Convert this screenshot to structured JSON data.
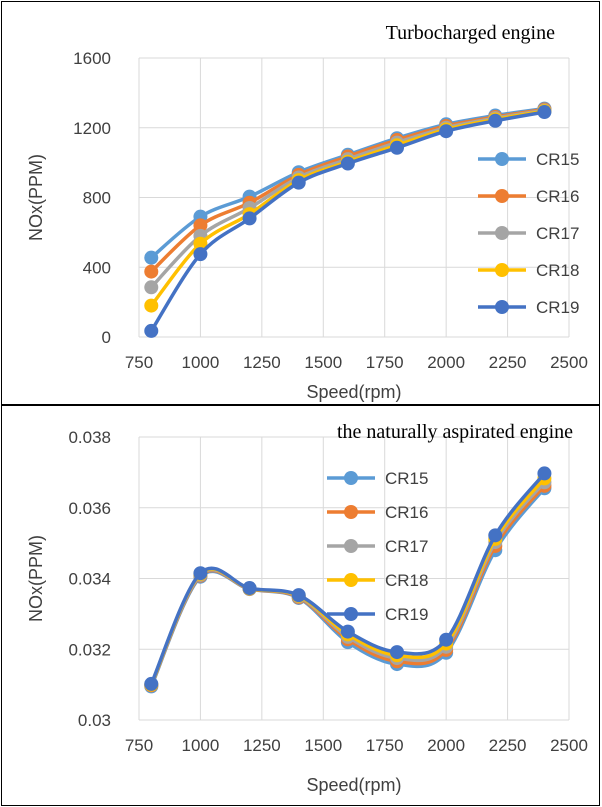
{
  "colors": [
    "#5B9BD5",
    "#ED7D31",
    "#A5A5A5",
    "#FFC000",
    "#4472C4"
  ],
  "chart_data": [
    {
      "type": "line",
      "title": "Turbocharged engine",
      "xlabel": "Speed(rpm)",
      "ylabel": "NOx(PPM)",
      "x": [
        800,
        1000,
        1200,
        1400,
        1600,
        1800,
        2000,
        2200,
        2400
      ],
      "xlim": [
        750,
        2500
      ],
      "ylim": [
        0,
        1600
      ],
      "xticks": [
        750,
        1000,
        1250,
        1500,
        1750,
        2000,
        2250,
        2500
      ],
      "yticks": [
        0,
        400,
        800,
        1200,
        1600
      ],
      "ytick_labels": [
        "0",
        "400",
        "800",
        "1200",
        "1600"
      ],
      "legend": "right",
      "grid": true,
      "series": [
        {
          "name": "CR15",
          "values": [
            455,
            690,
            805,
            945,
            1045,
            1140,
            1220,
            1270,
            1310
          ]
        },
        {
          "name": "CR16",
          "values": [
            375,
            640,
            770,
            930,
            1035,
            1130,
            1210,
            1262,
            1305
          ]
        },
        {
          "name": "CR17",
          "values": [
            285,
            580,
            740,
            915,
            1020,
            1115,
            1200,
            1255,
            1300
          ]
        },
        {
          "name": "CR18",
          "values": [
            180,
            535,
            705,
            900,
            1005,
            1100,
            1190,
            1248,
            1295
          ]
        },
        {
          "name": "CR19",
          "values": [
            35,
            475,
            680,
            885,
            995,
            1085,
            1180,
            1240,
            1290
          ]
        }
      ]
    },
    {
      "type": "line",
      "title": "the naturally aspirated engine",
      "xlabel": "Speed(rpm)",
      "ylabel": "NOx(PPM)",
      "x": [
        800,
        1000,
        1200,
        1400,
        1600,
        1800,
        2000,
        2200,
        2400
      ],
      "xlim": [
        750,
        2500
      ],
      "ylim": [
        0.03,
        0.038
      ],
      "xticks": [
        750,
        1000,
        1250,
        1500,
        1750,
        2000,
        2250,
        2500
      ],
      "yticks": [
        0.03,
        0.032,
        0.034,
        0.036,
        0.038
      ],
      "ytick_labels": [
        "0.03",
        "0.032",
        "0.034",
        "0.036",
        "0.038"
      ],
      "legend": "top-center",
      "grid": true,
      "series": [
        {
          "name": "CR15",
          "values": [
            0.03095,
            0.03405,
            0.0337,
            0.03345,
            0.0322,
            0.03158,
            0.0319,
            0.0348,
            0.03655
          ]
        },
        {
          "name": "CR16",
          "values": [
            0.03098,
            0.03408,
            0.03371,
            0.03347,
            0.03228,
            0.03166,
            0.03198,
            0.03492,
            0.03662
          ]
        },
        {
          "name": "CR17",
          "values": [
            0.031,
            0.0341,
            0.03372,
            0.03349,
            0.03235,
            0.03175,
            0.03207,
            0.03503,
            0.03672
          ]
        },
        {
          "name": "CR18",
          "values": [
            0.031,
            0.03413,
            0.03372,
            0.03351,
            0.03242,
            0.03183,
            0.03216,
            0.03512,
            0.03683
          ]
        },
        {
          "name": "CR19",
          "values": [
            0.03102,
            0.03415,
            0.03373,
            0.03353,
            0.0325,
            0.03192,
            0.03227,
            0.03522,
            0.03697
          ]
        }
      ]
    }
  ]
}
